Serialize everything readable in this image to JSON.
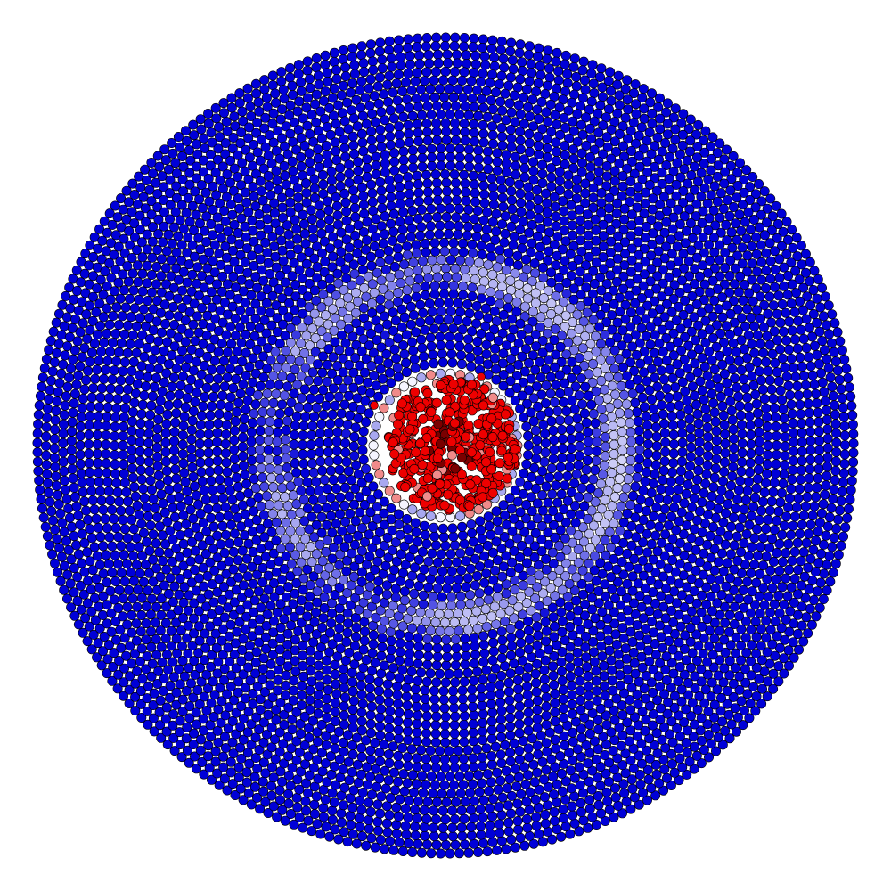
{
  "visualization": {
    "subject": "concentric-particle-disk",
    "colormap": {
      "outer": "#0000d8",
      "mid_blue": "#3a3ae6",
      "light_blue": "#a8a8f0",
      "white": "#f4f4ff",
      "light_red": "#f08a8a",
      "red": "#ee0000",
      "dark_red": "#7a0000"
    },
    "particle_edge_color": "#000000",
    "background": "#ffffff",
    "core_relative_radius": 0.17,
    "halo_inner_relative_radius": 0.37,
    "halo_outer_relative_radius": 0.48
  }
}
